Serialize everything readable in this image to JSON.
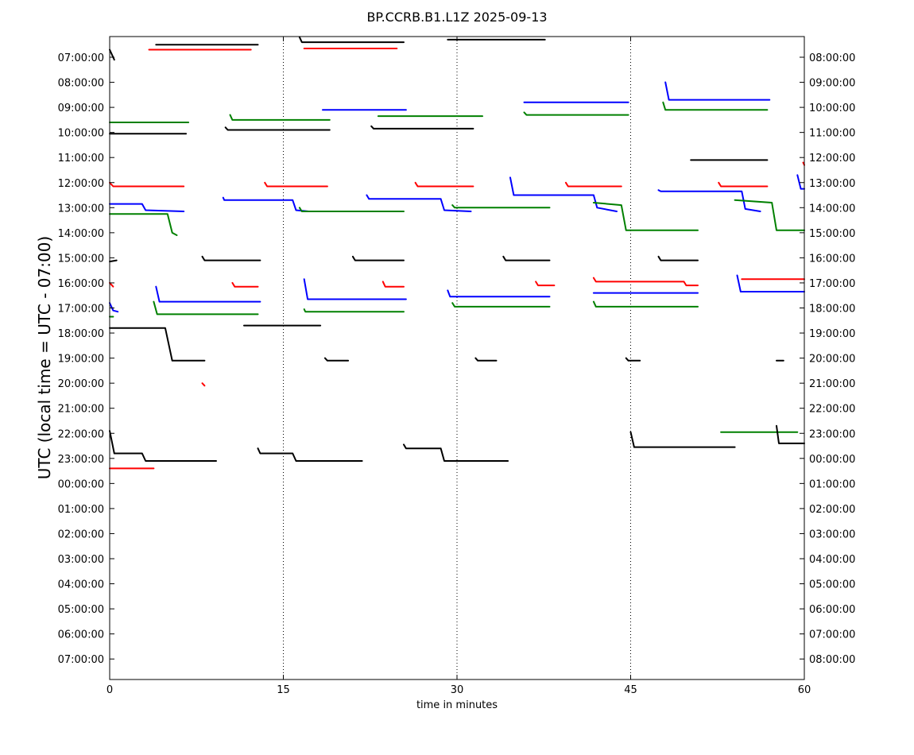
{
  "chart_data": {
    "type": "line",
    "title": "BP.CCRB.B1.L1Z 2025-09-13",
    "xlabel": "time in minutes",
    "ylabel": "UTC (local time = UTC - 07:00)",
    "xlim": [
      0,
      60
    ],
    "x_ticks": [
      0,
      15,
      30,
      45,
      60
    ],
    "x_gridlines": [
      15,
      30,
      45
    ],
    "grid": "vertical dotted",
    "left_tick_labels": [
      "07:00:00",
      "08:00:00",
      "09:00:00",
      "10:00:00",
      "11:00:00",
      "12:00:00",
      "13:00:00",
      "14:00:00",
      "15:00:00",
      "16:00:00",
      "17:00:00",
      "18:00:00",
      "19:00:00",
      "20:00:00",
      "21:00:00",
      "22:00:00",
      "23:00:00",
      "00:00:00",
      "01:00:00",
      "02:00:00",
      "03:00:00",
      "04:00:00",
      "05:00:00",
      "06:00:00",
      "07:00:00"
    ],
    "right_tick_labels": [
      "08:00:00",
      "09:00:00",
      "10:00:00",
      "11:00:00",
      "12:00:00",
      "13:00:00",
      "14:00:00",
      "15:00:00",
      "16:00:00",
      "17:00:00",
      "18:00:00",
      "19:00:00",
      "20:00:00",
      "21:00:00",
      "22:00:00",
      "23:00:00",
      "00:00:00",
      "01:00:00",
      "02:00:00",
      "03:00:00",
      "04:00:00",
      "05:00:00",
      "06:00:00",
      "07:00:00",
      "08:00:00"
    ],
    "colors": {
      "black": "#000000",
      "red": "#ff0000",
      "blue": "#0000ff",
      "green": "#008000"
    },
    "trace_unit": "hours after 07:00 UTC row",
    "segments": [
      {
        "color": "black",
        "points": [
          [
            0,
            -0.3
          ],
          [
            0.4,
            0.1
          ]
        ]
      },
      {
        "color": "black",
        "points": [
          [
            4,
            -0.5
          ],
          [
            12.8,
            -0.5
          ]
        ]
      },
      {
        "color": "red",
        "points": [
          [
            3.4,
            -0.3
          ],
          [
            12.2,
            -0.3
          ]
        ]
      },
      {
        "color": "black",
        "points": [
          [
            16.4,
            -0.8
          ],
          [
            16.6,
            -0.6
          ],
          [
            25.4,
            -0.6
          ]
        ]
      },
      {
        "color": "red",
        "points": [
          [
            16.8,
            -0.35
          ],
          [
            24.8,
            -0.35
          ]
        ]
      },
      {
        "color": "black",
        "points": [
          [
            29.2,
            -0.7
          ],
          [
            37.6,
            -0.7
          ]
        ]
      },
      {
        "color": "blue",
        "points": [
          [
            48,
            1
          ],
          [
            48.3,
            1.7
          ],
          [
            57,
            1.7
          ]
        ]
      },
      {
        "color": "blue",
        "points": [
          [
            18.4,
            2.1
          ],
          [
            25.6,
            2.1
          ]
        ]
      },
      {
        "color": "blue",
        "points": [
          [
            35.8,
            1.8
          ],
          [
            44.8,
            1.8
          ]
        ]
      },
      {
        "color": "green",
        "points": [
          [
            0,
            2.6
          ],
          [
            6.8,
            2.6
          ]
        ]
      },
      {
        "color": "green",
        "points": [
          [
            10.4,
            2.3
          ],
          [
            10.6,
            2.5
          ],
          [
            19,
            2.5
          ]
        ]
      },
      {
        "color": "green",
        "points": [
          [
            23.2,
            2.35
          ],
          [
            32.2,
            2.35
          ]
        ]
      },
      {
        "color": "green",
        "points": [
          [
            35.8,
            2.2
          ],
          [
            36,
            2.3
          ],
          [
            44.8,
            2.3
          ]
        ]
      },
      {
        "color": "green",
        "points": [
          [
            47.8,
            1.8
          ],
          [
            48,
            2.1
          ],
          [
            56.8,
            2.1
          ]
        ]
      },
      {
        "color": "black",
        "points": [
          [
            0,
            3.05
          ],
          [
            6.6,
            3.05
          ]
        ]
      },
      {
        "color": "black",
        "points": [
          [
            10,
            2.8
          ],
          [
            10.2,
            2.9
          ],
          [
            19,
            2.9
          ]
        ]
      },
      {
        "color": "black",
        "points": [
          [
            22.6,
            2.75
          ],
          [
            22.8,
            2.85
          ],
          [
            31.4,
            2.85
          ]
        ]
      },
      {
        "color": "black",
        "points": [
          [
            50.2,
            4.1
          ],
          [
            56.8,
            4.1
          ]
        ]
      },
      {
        "color": "red",
        "points": [
          [
            0,
            5
          ],
          [
            0.3,
            5.15
          ],
          [
            6.4,
            5.15
          ]
        ]
      },
      {
        "color": "red",
        "points": [
          [
            13.4,
            5
          ],
          [
            13.6,
            5.15
          ],
          [
            18.8,
            5.15
          ]
        ]
      },
      {
        "color": "red",
        "points": [
          [
            26.4,
            5
          ],
          [
            26.6,
            5.15
          ],
          [
            31.4,
            5.15
          ]
        ]
      },
      {
        "color": "red",
        "points": [
          [
            39.4,
            5
          ],
          [
            39.6,
            5.15
          ],
          [
            44.2,
            5.15
          ]
        ]
      },
      {
        "color": "red",
        "points": [
          [
            52.6,
            5
          ],
          [
            52.8,
            5.15
          ],
          [
            56.8,
            5.15
          ]
        ]
      },
      {
        "color": "red",
        "points": [
          [
            59.9,
            4.2
          ],
          [
            60,
            4.3
          ]
        ]
      },
      {
        "color": "blue",
        "points": [
          [
            0,
            5.85
          ],
          [
            2.8,
            5.85
          ],
          [
            3.1,
            6.1
          ],
          [
            6.4,
            6.15
          ]
        ]
      },
      {
        "color": "blue",
        "points": [
          [
            9.8,
            5.6
          ],
          [
            9.9,
            5.7
          ],
          [
            15.8,
            5.7
          ],
          [
            16.1,
            6.1
          ],
          [
            17.2,
            6.15
          ]
        ]
      },
      {
        "color": "blue",
        "points": [
          [
            22.2,
            5.5
          ],
          [
            22.4,
            5.65
          ],
          [
            28.6,
            5.65
          ],
          [
            28.9,
            6.1
          ],
          [
            31.2,
            6.15
          ]
        ]
      },
      {
        "color": "blue",
        "points": [
          [
            34.6,
            4.8
          ],
          [
            34.9,
            5.5
          ],
          [
            41.8,
            5.5
          ],
          [
            42.1,
            6.0
          ],
          [
            43.8,
            6.15
          ]
        ]
      },
      {
        "color": "blue",
        "points": [
          [
            47.4,
            5.3
          ],
          [
            47.6,
            5.35
          ],
          [
            54.6,
            5.35
          ],
          [
            54.9,
            6.05
          ],
          [
            56.2,
            6.15
          ]
        ]
      },
      {
        "color": "blue",
        "points": [
          [
            59.4,
            4.7
          ],
          [
            59.7,
            5.25
          ],
          [
            60,
            5.25
          ]
        ]
      },
      {
        "color": "green",
        "points": [
          [
            0,
            6.25
          ],
          [
            5,
            6.25
          ],
          [
            5.4,
            7.0
          ],
          [
            5.8,
            7.1
          ]
        ]
      },
      {
        "color": "green",
        "points": [
          [
            16.4,
            6.0
          ],
          [
            16.6,
            6.15
          ],
          [
            25.4,
            6.15
          ]
        ]
      },
      {
        "color": "green",
        "points": [
          [
            29.6,
            5.9
          ],
          [
            29.8,
            6.0
          ],
          [
            38,
            6.0
          ]
        ]
      },
      {
        "color": "green",
        "points": [
          [
            41.8,
            5.8
          ],
          [
            44.2,
            5.9
          ],
          [
            44.6,
            6.9
          ],
          [
            50.8,
            6.9
          ]
        ]
      },
      {
        "color": "green",
        "points": [
          [
            54,
            5.7
          ],
          [
            57.2,
            5.8
          ],
          [
            57.6,
            6.9
          ],
          [
            60,
            6.9
          ]
        ]
      },
      {
        "color": "black",
        "points": [
          [
            0,
            8.15
          ],
          [
            0.6,
            8.1
          ]
        ]
      },
      {
        "color": "black",
        "points": [
          [
            8,
            7.95
          ],
          [
            8.2,
            8.1
          ],
          [
            13,
            8.1
          ]
        ]
      },
      {
        "color": "black",
        "points": [
          [
            21,
            7.95
          ],
          [
            21.2,
            8.1
          ],
          [
            25.4,
            8.1
          ]
        ]
      },
      {
        "color": "black",
        "points": [
          [
            34,
            7.95
          ],
          [
            34.2,
            8.1
          ],
          [
            38,
            8.1
          ]
        ]
      },
      {
        "color": "black",
        "points": [
          [
            47.4,
            7.95
          ],
          [
            47.6,
            8.1
          ],
          [
            50.8,
            8.1
          ]
        ]
      },
      {
        "color": "red",
        "points": [
          [
            0,
            9.0
          ],
          [
            0.3,
            9.15
          ]
        ]
      },
      {
        "color": "red",
        "points": [
          [
            10.6,
            9.0
          ],
          [
            10.8,
            9.15
          ],
          [
            12.8,
            9.15
          ]
        ]
      },
      {
        "color": "red",
        "points": [
          [
            23.6,
            8.95
          ],
          [
            23.8,
            9.15
          ],
          [
            25.4,
            9.15
          ]
        ]
      },
      {
        "color": "red",
        "points": [
          [
            36.8,
            8.95
          ],
          [
            37,
            9.1
          ],
          [
            38.4,
            9.1
          ]
        ]
      },
      {
        "color": "red",
        "points": [
          [
            41.8,
            8.8
          ],
          [
            42,
            8.95
          ],
          [
            49.6,
            8.95
          ],
          [
            49.8,
            9.1
          ],
          [
            50.8,
            9.1
          ]
        ]
      },
      {
        "color": "red",
        "points": [
          [
            54.6,
            8.85
          ],
          [
            60,
            8.85
          ]
        ]
      },
      {
        "color": "blue",
        "points": [
          [
            0,
            9.8
          ],
          [
            0.3,
            10.1
          ],
          [
            0.7,
            10.15
          ]
        ]
      },
      {
        "color": "blue",
        "points": [
          [
            4,
            9.15
          ],
          [
            4.3,
            9.75
          ],
          [
            13,
            9.75
          ]
        ]
      },
      {
        "color": "blue",
        "points": [
          [
            16.8,
            8.85
          ],
          [
            17.1,
            9.65
          ],
          [
            25.6,
            9.65
          ]
        ]
      },
      {
        "color": "blue",
        "points": [
          [
            29.2,
            9.3
          ],
          [
            29.4,
            9.55
          ],
          [
            38,
            9.55
          ]
        ]
      },
      {
        "color": "blue",
        "points": [
          [
            41.8,
            9.4
          ],
          [
            50.8,
            9.4
          ]
        ]
      },
      {
        "color": "blue",
        "points": [
          [
            54.2,
            8.7
          ],
          [
            54.5,
            9.35
          ],
          [
            60,
            9.35
          ]
        ]
      },
      {
        "color": "green",
        "points": [
          [
            0,
            10.35
          ],
          [
            0.3,
            10.35
          ]
        ]
      },
      {
        "color": "green",
        "points": [
          [
            3.8,
            9.75
          ],
          [
            4.1,
            10.25
          ],
          [
            12.8,
            10.25
          ]
        ]
      },
      {
        "color": "green",
        "points": [
          [
            16.8,
            10.05
          ],
          [
            16.9,
            10.15
          ],
          [
            25.4,
            10.15
          ]
        ]
      },
      {
        "color": "green",
        "points": [
          [
            29.6,
            9.8
          ],
          [
            29.8,
            9.95
          ],
          [
            38,
            9.95
          ]
        ]
      },
      {
        "color": "green",
        "points": [
          [
            41.8,
            9.75
          ],
          [
            42,
            9.95
          ],
          [
            50.8,
            9.95
          ]
        ]
      },
      {
        "color": "black",
        "points": [
          [
            0,
            10.8
          ],
          [
            4.8,
            10.8
          ],
          [
            5.4,
            12.1
          ],
          [
            8.2,
            12.1
          ]
        ]
      },
      {
        "color": "black",
        "points": [
          [
            11.6,
            10.7
          ],
          [
            18.2,
            10.7
          ]
        ]
      },
      {
        "color": "black",
        "points": [
          [
            18.6,
            12.0
          ],
          [
            18.8,
            12.1
          ],
          [
            20.6,
            12.1
          ]
        ]
      },
      {
        "color": "black",
        "points": [
          [
            31.6,
            12.0
          ],
          [
            31.8,
            12.1
          ],
          [
            33.4,
            12.1
          ]
        ]
      },
      {
        "color": "black",
        "points": [
          [
            44.6,
            12.0
          ],
          [
            44.8,
            12.1
          ],
          [
            45.8,
            12.1
          ]
        ]
      },
      {
        "color": "black",
        "points": [
          [
            57.6,
            12.1
          ],
          [
            58.2,
            12.1
          ]
        ]
      },
      {
        "color": "red",
        "points": [
          [
            8,
            13.0
          ],
          [
            8.2,
            13.1
          ]
        ]
      },
      {
        "color": "black",
        "points": [
          [
            0,
            14.9
          ],
          [
            0.4,
            15.8
          ],
          [
            2.8,
            15.8
          ],
          [
            3.1,
            16.1
          ],
          [
            9.2,
            16.1
          ]
        ]
      },
      {
        "color": "red",
        "points": [
          [
            0,
            16.4
          ],
          [
            3.8,
            16.4
          ]
        ]
      },
      {
        "color": "black",
        "points": [
          [
            12.8,
            15.6
          ],
          [
            13,
            15.8
          ],
          [
            15.8,
            15.8
          ],
          [
            16.1,
            16.1
          ],
          [
            21.8,
            16.1
          ]
        ]
      },
      {
        "color": "black",
        "points": [
          [
            25.4,
            15.45
          ],
          [
            25.6,
            15.6
          ],
          [
            28.6,
            15.6
          ],
          [
            28.9,
            16.1
          ],
          [
            34.4,
            16.1
          ]
        ]
      },
      {
        "color": "black",
        "points": [
          [
            45,
            14.95
          ],
          [
            45.3,
            15.55
          ],
          [
            54,
            15.55
          ]
        ]
      },
      {
        "color": "green",
        "points": [
          [
            52.8,
            14.95
          ],
          [
            59.4,
            14.95
          ]
        ]
      },
      {
        "color": "black",
        "points": [
          [
            57.6,
            14.7
          ],
          [
            57.8,
            15.4
          ],
          [
            60,
            15.4
          ]
        ]
      }
    ]
  }
}
